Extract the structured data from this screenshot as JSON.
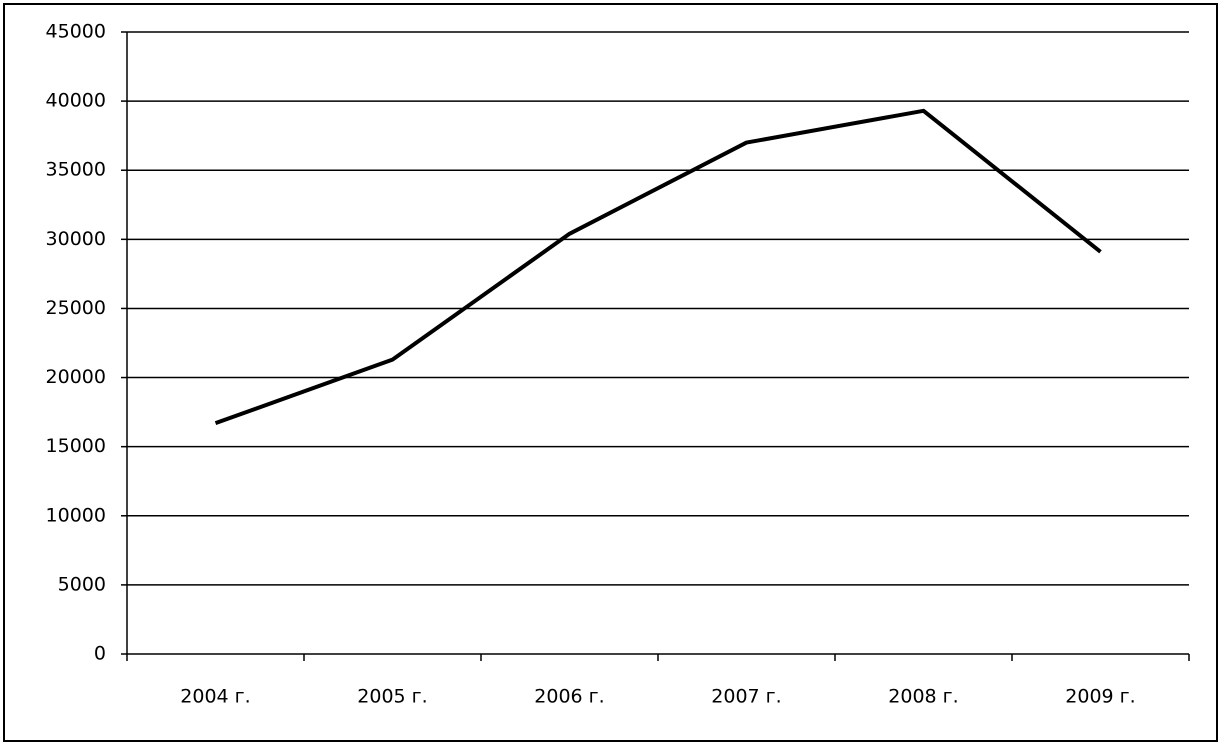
{
  "chart_data": {
    "type": "line",
    "categories": [
      "2004 г.",
      "2005 г.",
      "2006 г.",
      "2007 г.",
      "2008 г.",
      "2009 г."
    ],
    "series": [
      {
        "values": [
          16700,
          21300,
          30400,
          37000,
          39300,
          29100
        ],
        "color": "#000000"
      }
    ],
    "ylim": [
      0,
      45000
    ],
    "yticks": [
      0,
      5000,
      10000,
      15000,
      20000,
      25000,
      30000,
      35000,
      40000,
      45000
    ],
    "grid": true
  }
}
